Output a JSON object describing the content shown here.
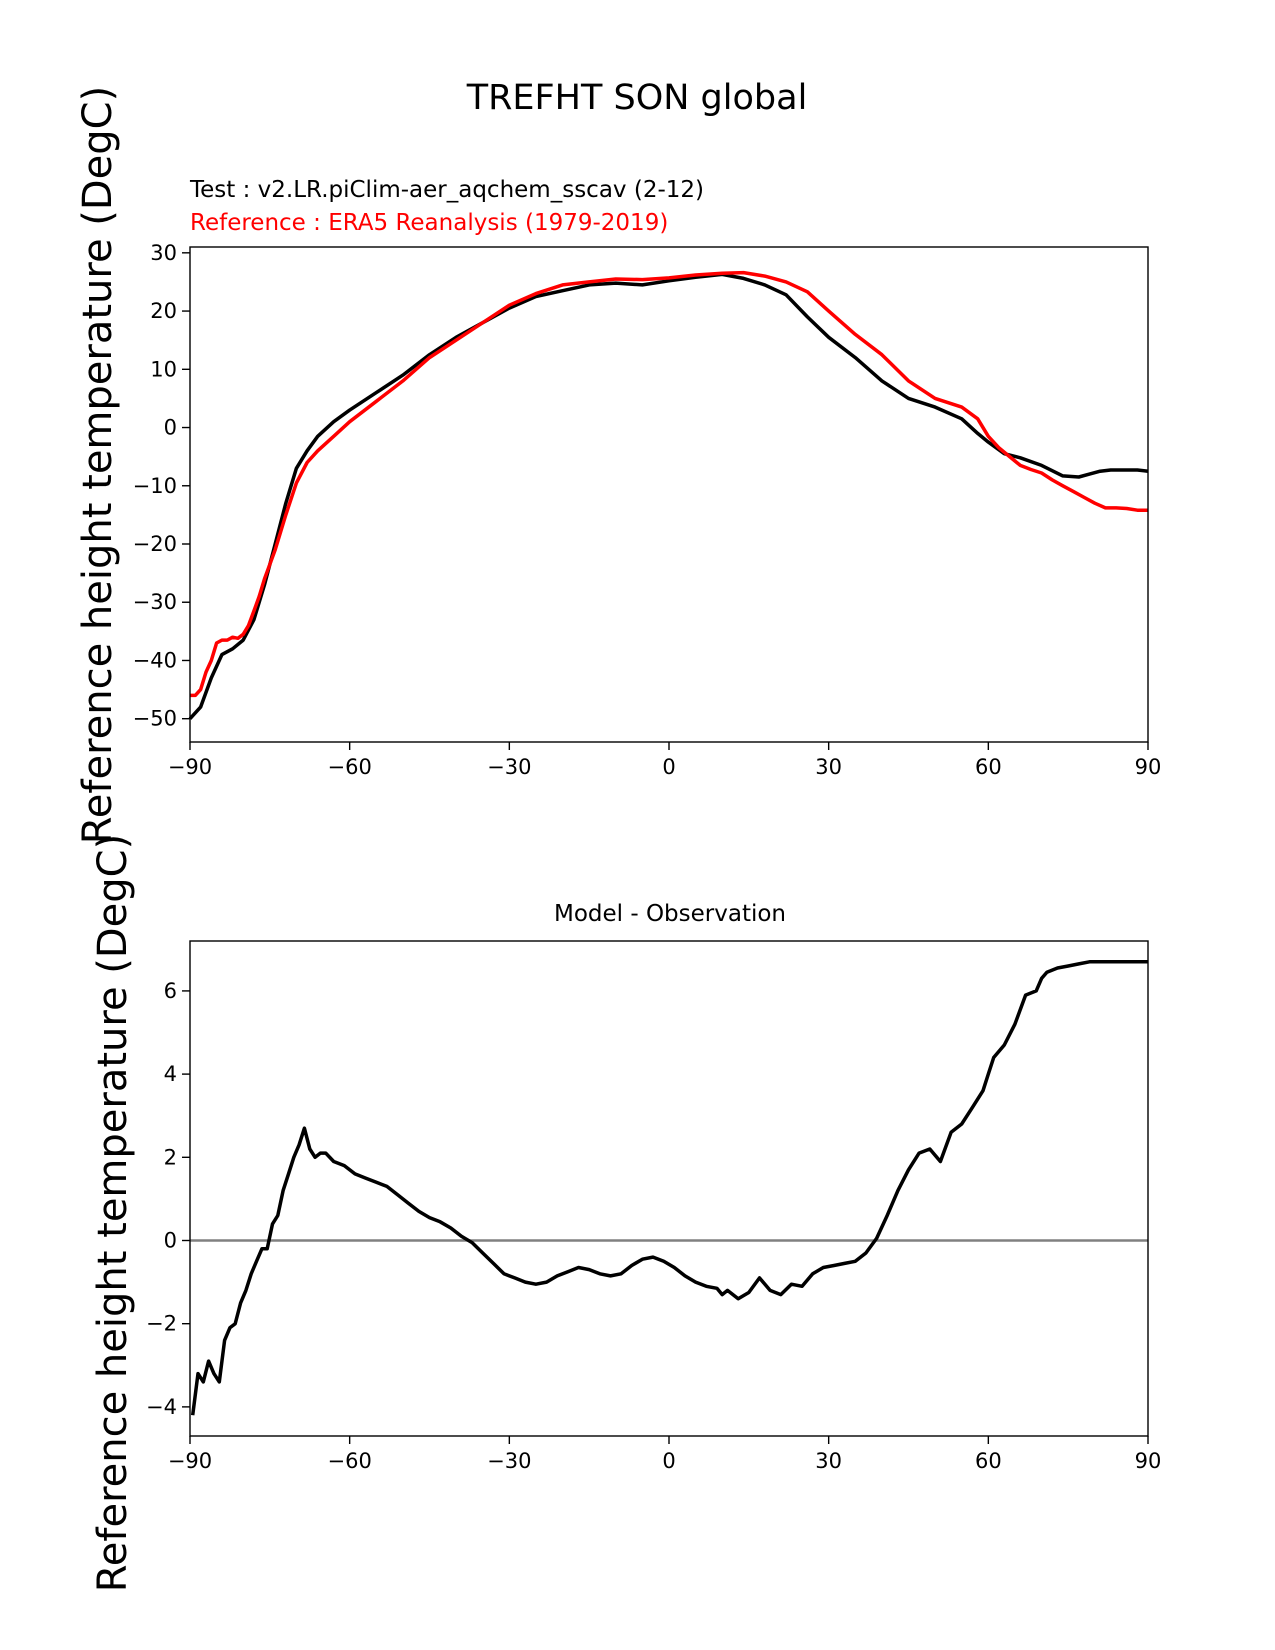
{
  "figure": {
    "suptitle": "TREFHT SON global",
    "colors": {
      "test": "#000000",
      "reference": "#ff0000",
      "zero_line": "#808080",
      "axes": "#000000"
    }
  },
  "chart_data": [
    {
      "type": "line",
      "name": "climatology",
      "title_test": "Test : v2.LR.piClim-aer_aqchem_sscav (2-12)",
      "title_reference": "Reference : ERA5 Reanalysis (1979-2019)",
      "ylabel": "Reference height temperature (DegC)",
      "xlabel": "",
      "xlim": [
        -90,
        90
      ],
      "ylim": [
        -54,
        31
      ],
      "xticks": [
        -90,
        -60,
        -30,
        0,
        30,
        60,
        90
      ],
      "xtick_labels": [
        "−90",
        "−60",
        "−30",
        "0",
        "30",
        "60",
        "90"
      ],
      "yticks": [
        -50,
        -40,
        -30,
        -20,
        -10,
        0,
        10,
        20,
        30
      ],
      "ytick_labels": [
        "−50",
        "−40",
        "−30",
        "−20",
        "−10",
        "0",
        "10",
        "20",
        "30"
      ],
      "series": [
        {
          "name": "Test",
          "color": "#000000",
          "x": [
            -90,
            -88,
            -86,
            -84,
            -82,
            -80,
            -78,
            -76,
            -74,
            -72,
            -70,
            -68,
            -66,
            -63,
            -60,
            -55,
            -50,
            -45,
            -40,
            -35,
            -30,
            -25,
            -20,
            -15,
            -10,
            -5,
            0,
            5,
            10,
            14,
            18,
            22,
            26,
            30,
            35,
            40,
            45,
            50,
            55,
            58,
            60,
            63,
            66,
            70,
            74,
            77,
            79,
            81,
            83,
            85,
            88,
            90
          ],
          "y": [
            -50,
            -48,
            -43,
            -39,
            -38,
            -36.5,
            -33,
            -27,
            -20,
            -13,
            -7,
            -4,
            -1.5,
            1,
            3,
            6,
            9,
            12.5,
            15.5,
            18,
            20.5,
            22.5,
            23.5,
            24.5,
            24.8,
            24.5,
            25.2,
            25.8,
            26.3,
            25.6,
            24.5,
            22.8,
            19,
            15.5,
            12,
            8,
            5,
            3.5,
            1.5,
            -1,
            -2.5,
            -4.5,
            -5.2,
            -6.5,
            -8.3,
            -8.5,
            -8,
            -7.5,
            -7.3,
            -7.3,
            -7.3,
            -7.5
          ]
        },
        {
          "name": "Reference",
          "color": "#ff0000",
          "x": [
            -90,
            -89,
            -88,
            -87,
            -86,
            -85,
            -84,
            -83,
            -82,
            -81,
            -80,
            -79,
            -78,
            -77,
            -76,
            -74,
            -72,
            -70,
            -68,
            -66,
            -63,
            -60,
            -55,
            -50,
            -45,
            -40,
            -35,
            -30,
            -25,
            -20,
            -15,
            -10,
            -5,
            0,
            5,
            10,
            14,
            18,
            22,
            26,
            30,
            35,
            40,
            45,
            50,
            55,
            58,
            60,
            62,
            64,
            66,
            68,
            70,
            72,
            74,
            76,
            78,
            80,
            82,
            84,
            86,
            88,
            90
          ],
          "y": [
            -46,
            -46,
            -45,
            -42,
            -40,
            -37,
            -36.5,
            -36.5,
            -36,
            -36.2,
            -35.5,
            -34,
            -31.5,
            -29,
            -26,
            -21,
            -15,
            -9.5,
            -6,
            -4,
            -1.5,
            1,
            4.5,
            8,
            12,
            15,
            18,
            21,
            23,
            24.5,
            25,
            25.5,
            25.4,
            25.7,
            26.2,
            26.5,
            26.6,
            26,
            25,
            23.3,
            20,
            16,
            12.5,
            8,
            5,
            3.5,
            1.5,
            -1.5,
            -3.5,
            -5,
            -6.5,
            -7.2,
            -7.8,
            -9,
            -10,
            -11,
            -12,
            -13,
            -13.8,
            -13.8,
            -13.9,
            -14.2,
            -14.2
          ]
        }
      ]
    },
    {
      "type": "line",
      "name": "difference",
      "title": "Model - Observation",
      "ylabel": "Reference height temperature (DegC)",
      "xlabel": "",
      "xlim": [
        -90,
        90
      ],
      "ylim": [
        -4.7,
        7.2
      ],
      "xticks": [
        -90,
        -60,
        -30,
        0,
        30,
        60,
        90
      ],
      "xtick_labels": [
        "−90",
        "−60",
        "−30",
        "0",
        "30",
        "60",
        "90"
      ],
      "yticks": [
        -4,
        -2,
        0,
        2,
        4,
        6
      ],
      "ytick_labels": [
        "−4",
        "−2",
        "0",
        "2",
        "4",
        "6"
      ],
      "zero_line": 0,
      "series": [
        {
          "name": "Model - Observation",
          "color": "#000000",
          "x": [
            -89.5,
            -88.5,
            -87.5,
            -86.5,
            -85.5,
            -84.5,
            -83.5,
            -82.5,
            -81.5,
            -80.5,
            -79.5,
            -78.5,
            -77.5,
            -76.5,
            -75.5,
            -74.5,
            -73.5,
            -72.5,
            -71.5,
            -70.5,
            -69.5,
            -68.5,
            -67.5,
            -66.5,
            -65.5,
            -64.5,
            -63,
            -61,
            -59,
            -57,
            -55,
            -53,
            -51,
            -49,
            -47,
            -45,
            -43,
            -41,
            -39,
            -37,
            -35,
            -33,
            -31,
            -29,
            -27,
            -25,
            -23,
            -21,
            -19,
            -17,
            -15,
            -13,
            -11,
            -9,
            -7,
            -5,
            -3,
            -1,
            1,
            3,
            5,
            7,
            9,
            10,
            11,
            13,
            15,
            17,
            19,
            21,
            23,
            25,
            27,
            29,
            31,
            33,
            35,
            37,
            39,
            41,
            43,
            45,
            47,
            49,
            51,
            53,
            55,
            57,
            59,
            60,
            61,
            63,
            65,
            67,
            69,
            70,
            71,
            73,
            75,
            77,
            79,
            80,
            81,
            83,
            84,
            85,
            86,
            87,
            88,
            89,
            90
          ],
          "y": [
            -4.2,
            -3.2,
            -3.4,
            -2.9,
            -3.2,
            -3.4,
            -2.4,
            -2.1,
            -2.0,
            -1.5,
            -1.2,
            -0.8,
            -0.5,
            -0.2,
            -0.2,
            0.4,
            0.6,
            1.2,
            1.6,
            2.0,
            2.3,
            2.7,
            2.2,
            2.0,
            2.1,
            2.1,
            1.9,
            1.8,
            1.6,
            1.5,
            1.4,
            1.3,
            1.1,
            0.9,
            0.7,
            0.55,
            0.45,
            0.3,
            0.1,
            -0.05,
            -0.3,
            -0.55,
            -0.8,
            -0.9,
            -1.0,
            -1.05,
            -1.0,
            -0.85,
            -0.75,
            -0.65,
            -0.7,
            -0.8,
            -0.85,
            -0.8,
            -0.6,
            -0.45,
            -0.4,
            -0.5,
            -0.65,
            -0.85,
            -1.0,
            -1.1,
            -1.15,
            -1.3,
            -1.2,
            -1.4,
            -1.25,
            -0.9,
            -1.2,
            -1.3,
            -1.05,
            -1.1,
            -0.8,
            -0.65,
            -0.6,
            -0.55,
            -0.5,
            -0.3,
            0.05,
            0.6,
            1.2,
            1.7,
            2.1,
            2.2,
            1.9,
            2.6,
            2.8,
            3.2,
            3.6,
            4.0,
            4.4,
            4.7,
            5.2,
            5.9,
            6.0,
            6.3,
            6.45,
            6.55,
            6.6,
            6.65,
            6.7,
            6.7,
            6.7,
            6.7,
            6.7,
            6.7,
            6.7,
            6.7,
            6.7,
            6.7,
            6.7
          ]
        }
      ]
    }
  ]
}
